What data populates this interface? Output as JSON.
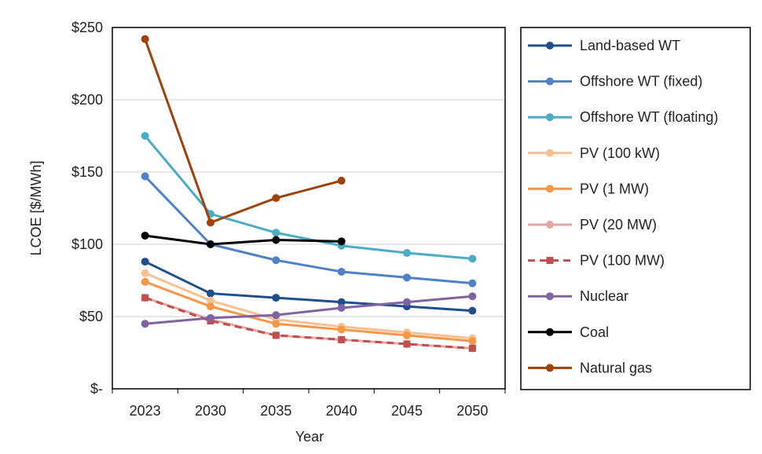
{
  "chart_data": {
    "type": "line",
    "title": "",
    "xlabel": "Year",
    "ylabel": "LCOE [$/MWh]",
    "categories": [
      "2023",
      "2030",
      "2035",
      "2040",
      "2045",
      "2050"
    ],
    "ylim": [
      0,
      250
    ],
    "yticks": [
      0,
      50,
      100,
      150,
      200,
      250
    ],
    "ytick_labels": [
      "$-",
      "$50",
      "$100",
      "$150",
      "$200",
      "$250"
    ],
    "grid": "horizontal",
    "legend_position": "right",
    "series": [
      {
        "name": "Land-based WT",
        "color": "#1F4E8C",
        "dash": false,
        "values": [
          88,
          66,
          63,
          60,
          57,
          54
        ]
      },
      {
        "name": "Offshore WT (fixed)",
        "color": "#4F81C6",
        "dash": false,
        "values": [
          147,
          100,
          89,
          81,
          77,
          73
        ]
      },
      {
        "name": "Offshore WT (floating)",
        "color": "#4BACC6",
        "dash": false,
        "values": [
          175,
          121,
          108,
          99,
          94,
          90
        ]
      },
      {
        "name": "PV (100 kW)",
        "color": "#FAC090",
        "dash": false,
        "values": [
          80,
          61,
          48,
          43,
          39,
          35
        ]
      },
      {
        "name": "PV (1 MW)",
        "color": "#F79646",
        "dash": false,
        "values": [
          74,
          57,
          45,
          41,
          37,
          33
        ]
      },
      {
        "name": "PV (20 MW)",
        "color": "#E6A5A0",
        "dash": false,
        "values": [
          63,
          48,
          37,
          34,
          31,
          28
        ]
      },
      {
        "name": "PV (100 MW)",
        "color": "#C0504D",
        "dash": true,
        "values": [
          63,
          47,
          37,
          34,
          31,
          28
        ]
      },
      {
        "name": "Nuclear",
        "color": "#8064A2",
        "dash": false,
        "values": [
          45,
          49,
          51,
          56,
          60,
          64
        ]
      },
      {
        "name": "Coal",
        "color": "#000000",
        "dash": false,
        "values": [
          106,
          100,
          103,
          102,
          null,
          null
        ]
      },
      {
        "name": "Natural gas",
        "color": "#A0400A",
        "dash": false,
        "values": [
          242,
          115,
          132,
          144,
          null,
          null
        ]
      }
    ]
  }
}
